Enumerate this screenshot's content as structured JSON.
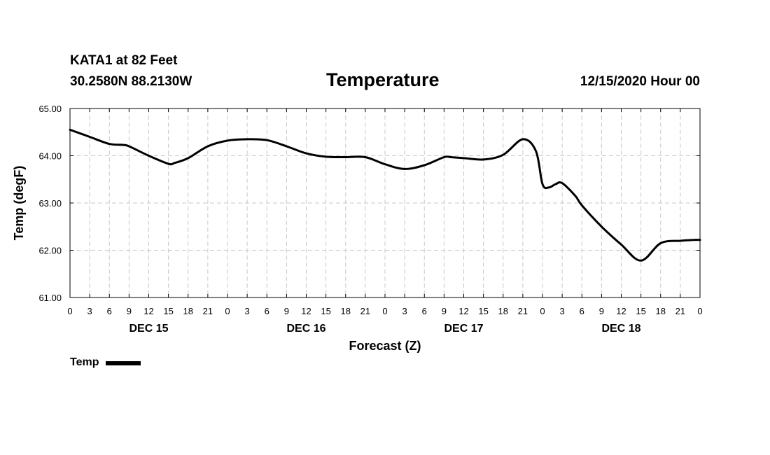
{
  "header": {
    "station": "KATA1 at 82 Feet",
    "coords": "30.2580N 88.2130W",
    "title": "Temperature",
    "run_time": "12/15/2020 Hour 00"
  },
  "legend": {
    "label": "Temp",
    "color": "#000000"
  },
  "chart_data": {
    "type": "line",
    "title": "Temperature",
    "xlabel": "Forecast (Z)",
    "ylabel": "Temp (degF)",
    "ylim": [
      61.0,
      65.0
    ],
    "yticks": [
      "61.00",
      "62.00",
      "63.00",
      "64.00",
      "65.00"
    ],
    "xlim_hours": [
      0,
      96
    ],
    "xtick_labels": [
      "0",
      "3",
      "6",
      "9",
      "12",
      "15",
      "18",
      "21",
      "0",
      "3",
      "6",
      "9",
      "12",
      "15",
      "18",
      "21",
      "0",
      "3",
      "6",
      "9",
      "12",
      "15",
      "18",
      "21",
      "0",
      "3",
      "6",
      "9",
      "12",
      "15",
      "18",
      "21",
      "0"
    ],
    "day_labels": [
      {
        "label": "DEC 15",
        "hour": 12
      },
      {
        "label": "DEC 16",
        "hour": 36
      },
      {
        "label": "DEC 17",
        "hour": 60
      },
      {
        "label": "DEC 18",
        "hour": 84
      }
    ],
    "grid": true,
    "series": [
      {
        "name": "Temp",
        "x": [
          0,
          3,
          6,
          8,
          9,
          12,
          15,
          16,
          18,
          21,
          24,
          27,
          30,
          33,
          36,
          39,
          42,
          45,
          48,
          51,
          54,
          57,
          58,
          60,
          63,
          66,
          69,
          71,
          72,
          73,
          74,
          75,
          77,
          78,
          81,
          84,
          87,
          90,
          93,
          94,
          95,
          96
        ],
        "values": [
          64.55,
          64.4,
          64.25,
          64.23,
          64.2,
          64.0,
          63.83,
          63.85,
          63.95,
          64.2,
          64.32,
          64.35,
          64.33,
          64.2,
          64.05,
          63.98,
          63.97,
          63.97,
          63.82,
          63.72,
          63.8,
          63.97,
          63.97,
          63.95,
          63.92,
          64.02,
          64.35,
          64.1,
          63.4,
          63.33,
          63.4,
          63.42,
          63.15,
          62.95,
          62.5,
          62.12,
          61.78,
          62.15,
          62.2,
          62.21,
          62.22,
          62.22
        ]
      }
    ]
  }
}
